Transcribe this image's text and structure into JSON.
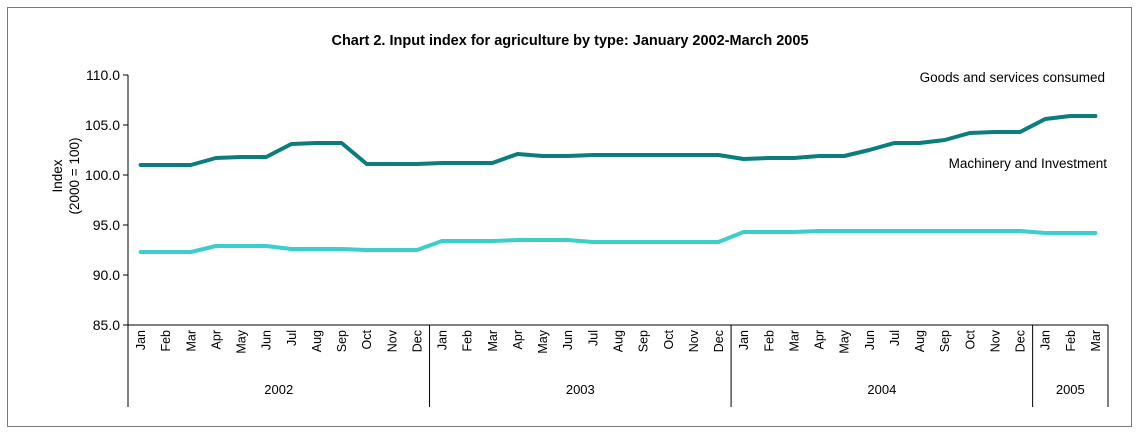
{
  "chart_data": {
    "type": "line",
    "title": "Chart 2.  Input index for agriculture by type: January 2002-March 2005",
    "ylabel": "Index",
    "ylabel2": "(2000 = 100)",
    "ylim": [
      85,
      110
    ],
    "yticks": [
      "85.0",
      "90.0",
      "95.0",
      "100.0",
      "105.0",
      "110.0"
    ],
    "months": [
      "Jan",
      "Feb",
      "Mar",
      "Apr",
      "May",
      "Jun",
      "Jul",
      "Aug",
      "Sep",
      "Oct",
      "Nov",
      "Dec",
      "Jan",
      "Feb",
      "Mar",
      "Apr",
      "May",
      "Jun",
      "Jul",
      "Aug",
      "Sep",
      "Oct",
      "Nov",
      "Dec",
      "Jan",
      "Feb",
      "Mar",
      "Apr",
      "May",
      "Jun",
      "Jul",
      "Aug",
      "Sep",
      "Oct",
      "Nov",
      "Dec",
      "Jan",
      "Feb",
      "Mar"
    ],
    "years": [
      {
        "label": "2002",
        "count": 12
      },
      {
        "label": "2003",
        "count": 12
      },
      {
        "label": "2004",
        "count": 12
      },
      {
        "label": "2005",
        "count": 3
      }
    ],
    "series": [
      {
        "name": "Goods and services consumed",
        "color": "#0b7d7d",
        "values": [
          101.0,
          101.0,
          101.0,
          101.7,
          101.8,
          101.8,
          103.1,
          103.2,
          103.2,
          101.1,
          101.1,
          101.1,
          101.2,
          101.2,
          101.2,
          102.1,
          101.9,
          101.9,
          102.0,
          102.0,
          102.0,
          102.0,
          102.0,
          102.0,
          101.6,
          101.7,
          101.7,
          101.9,
          101.9,
          102.5,
          103.2,
          103.2,
          103.5,
          104.2,
          104.3,
          104.3,
          105.6,
          105.9,
          105.9
        ]
      },
      {
        "name": "Machinery and Investment",
        "color": "#3ccfc9",
        "values": [
          92.3,
          92.3,
          92.3,
          92.9,
          92.9,
          92.9,
          92.6,
          92.6,
          92.6,
          92.5,
          92.5,
          92.5,
          93.4,
          93.4,
          93.4,
          93.5,
          93.5,
          93.5,
          93.3,
          93.3,
          93.3,
          93.3,
          93.3,
          93.3,
          94.3,
          94.3,
          94.3,
          94.4,
          94.4,
          94.4,
          94.4,
          94.4,
          94.4,
          94.4,
          94.4,
          94.4,
          94.2,
          94.2,
          94.2
        ]
      }
    ],
    "grid": false,
    "legend": "inline labels"
  }
}
